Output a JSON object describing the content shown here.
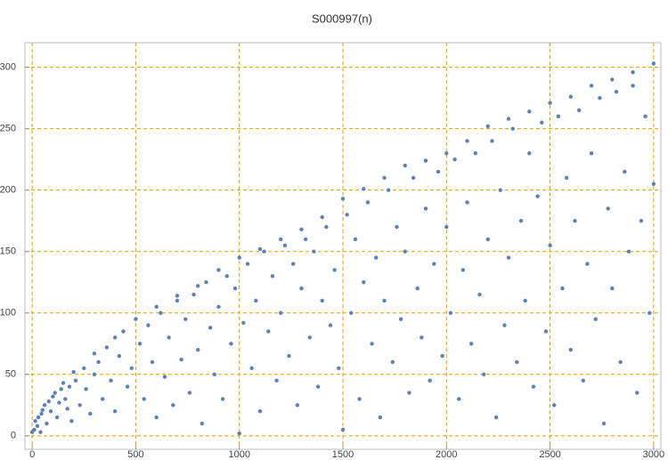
{
  "chart_data": {
    "type": "scatter",
    "title": "S000997(n)",
    "color": "#5e81b5",
    "grid": true,
    "grid_color": "#e69f00",
    "xlim": [
      -35,
      3035
    ],
    "ylim": [
      -11,
      320
    ],
    "xticks": [
      0,
      500,
      1000,
      1500,
      2000,
      2500,
      3000
    ],
    "yticks": [
      0,
      50,
      100,
      150,
      200,
      250,
      300
    ],
    "x": [
      0,
      50,
      100,
      150,
      200,
      300,
      400,
      500,
      600,
      700,
      800,
      900,
      1000,
      1100,
      1200,
      1300,
      1400,
      1500,
      1600,
      1700,
      1800,
      1900,
      2000,
      2100,
      2200,
      2300,
      2400,
      2500,
      2600,
      2700,
      2800,
      2900,
      3000,
      10,
      15,
      25,
      30,
      40,
      45,
      60,
      70,
      80,
      90,
      110,
      120,
      130,
      140,
      160,
      170,
      180,
      190,
      210,
      230,
      250,
      260,
      280,
      300,
      320,
      340,
      360,
      380,
      400,
      420,
      440,
      460,
      480,
      520,
      540,
      560,
      580,
      600,
      620,
      640,
      660,
      680,
      700,
      720,
      740,
      760,
      780,
      800,
      820,
      840,
      860,
      880,
      900,
      920,
      940,
      960,
      980,
      1000,
      1020,
      1040,
      1060,
      1080,
      1100,
      1120,
      1140,
      1160,
      1180,
      1200,
      1220,
      1240,
      1260,
      1280,
      1300,
      1320,
      1340,
      1360,
      1380,
      1400,
      1420,
      1440,
      1460,
      1480,
      1500,
      1520,
      1540,
      1560,
      1580,
      1600,
      1620,
      1640,
      1660,
      1680,
      1700,
      1720,
      1740,
      1760,
      1780,
      1800,
      1820,
      1840,
      1860,
      1880,
      1900,
      1920,
      1940,
      1960,
      1980,
      2000,
      2020,
      2040,
      2060,
      2080,
      2100,
      2120,
      2140,
      2160,
      2180,
      2200,
      2220,
      2240,
      2260,
      2280,
      2300,
      2320,
      2340,
      2360,
      2380,
      2400,
      2420,
      2440,
      2460,
      2480,
      2500,
      2520,
      2540,
      2560,
      2580,
      2600,
      2620,
      2640,
      2660,
      2680,
      2700,
      2720,
      2740,
      2760,
      2780,
      2800,
      2820,
      2840,
      2860,
      2880,
      2900,
      2920,
      2940,
      2960,
      2980,
      3000
    ],
    "values": [
      3,
      21,
      32,
      43,
      52,
      67,
      80,
      95,
      105,
      114,
      122,
      135,
      145,
      152,
      160,
      168,
      178,
      193,
      201,
      210,
      220,
      224,
      230,
      240,
      252,
      258,
      264,
      271,
      276,
      285,
      290,
      296,
      303,
      5,
      12,
      8,
      15,
      3,
      18,
      25,
      10,
      28,
      20,
      35,
      15,
      27,
      38,
      30,
      22,
      40,
      12,
      45,
      25,
      55,
      38,
      18,
      50,
      60,
      30,
      72,
      45,
      20,
      65,
      85,
      40,
      55,
      75,
      30,
      90,
      60,
      15,
      100,
      48,
      80,
      25,
      110,
      62,
      95,
      35,
      115,
      70,
      10,
      125,
      88,
      50,
      105,
      30,
      130,
      75,
      120,
      2,
      92,
      140,
      55,
      110,
      20,
      150,
      85,
      130,
      45,
      100,
      155,
      65,
      140,
      25,
      120,
      160,
      80,
      150,
      40,
      110,
      170,
      90,
      135,
      55,
      5,
      180,
      100,
      160,
      30,
      125,
      190,
      75,
      145,
      15,
      110,
      200,
      60,
      170,
      95,
      150,
      35,
      210,
      120,
      80,
      185,
      45,
      140,
      215,
      65,
      170,
      100,
      225,
      30,
      135,
      190,
      75,
      230,
      115,
      50,
      160,
      240,
      15,
      200,
      90,
      145,
      250,
      60,
      175,
      110,
      230,
      40,
      195,
      255,
      85,
      155,
      25,
      260,
      120,
      210,
      70,
      175,
      265,
      45,
      140,
      230,
      95,
      275,
      10,
      185,
      120,
      280,
      60,
      215,
      150,
      285,
      35,
      175,
      260,
      100,
      205
    ]
  }
}
